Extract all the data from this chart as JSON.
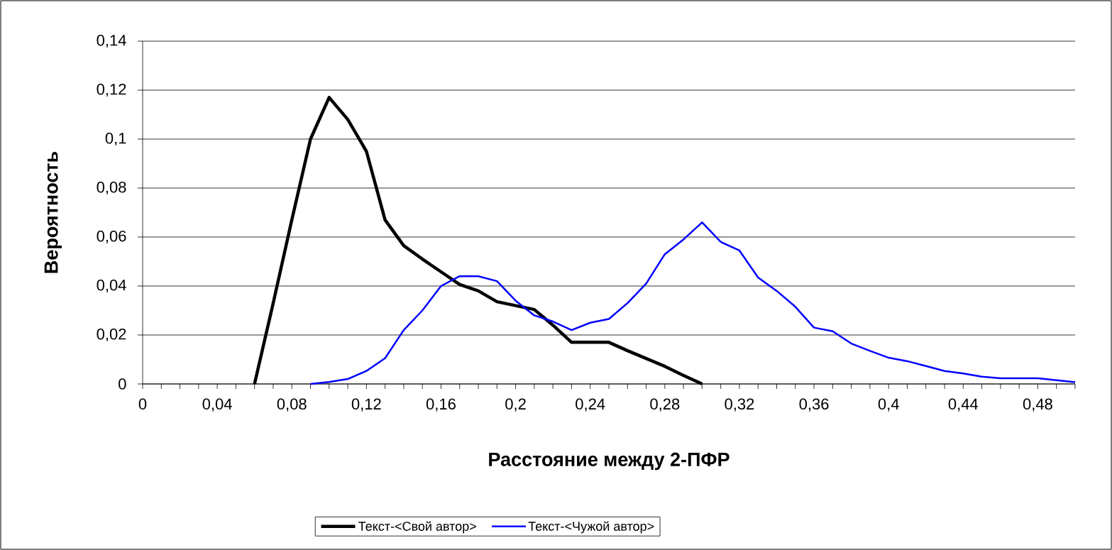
{
  "chart_data": {
    "type": "line",
    "xlabel": "Расстояние между 2-ПФР",
    "ylabel": "Вероятность",
    "xlim": [
      0,
      0.5
    ],
    "ylim": [
      0,
      0.14
    ],
    "xticks": [
      {
        "value": 0,
        "label": "0"
      },
      {
        "value": 0.01,
        "label": null
      },
      {
        "value": 0.02,
        "label": null
      },
      {
        "value": 0.03,
        "label": null
      },
      {
        "value": 0.04,
        "label": "0,04"
      },
      {
        "value": 0.05,
        "label": null
      },
      {
        "value": 0.06,
        "label": null
      },
      {
        "value": 0.07,
        "label": null
      },
      {
        "value": 0.08,
        "label": "0,08"
      },
      {
        "value": 0.09,
        "label": null
      },
      {
        "value": 0.1,
        "label": null
      },
      {
        "value": 0.11,
        "label": null
      },
      {
        "value": 0.12,
        "label": "0,12"
      },
      {
        "value": 0.13,
        "label": null
      },
      {
        "value": 0.14,
        "label": null
      },
      {
        "value": 0.15,
        "label": null
      },
      {
        "value": 0.16,
        "label": "0,16"
      },
      {
        "value": 0.17,
        "label": null
      },
      {
        "value": 0.18,
        "label": null
      },
      {
        "value": 0.19,
        "label": null
      },
      {
        "value": 0.2,
        "label": "0,2"
      },
      {
        "value": 0.21,
        "label": null
      },
      {
        "value": 0.22,
        "label": null
      },
      {
        "value": 0.23,
        "label": null
      },
      {
        "value": 0.24,
        "label": "0,24"
      },
      {
        "value": 0.25,
        "label": null
      },
      {
        "value": 0.26,
        "label": null
      },
      {
        "value": 0.27,
        "label": null
      },
      {
        "value": 0.28,
        "label": "0,28"
      },
      {
        "value": 0.29,
        "label": null
      },
      {
        "value": 0.3,
        "label": null
      },
      {
        "value": 0.31,
        "label": null
      },
      {
        "value": 0.32,
        "label": "0,32"
      },
      {
        "value": 0.33,
        "label": null
      },
      {
        "value": 0.34,
        "label": null
      },
      {
        "value": 0.35,
        "label": null
      },
      {
        "value": 0.36,
        "label": "0,36"
      },
      {
        "value": 0.37,
        "label": null
      },
      {
        "value": 0.38,
        "label": null
      },
      {
        "value": 0.39,
        "label": null
      },
      {
        "value": 0.4,
        "label": "0,4"
      },
      {
        "value": 0.41,
        "label": null
      },
      {
        "value": 0.42,
        "label": null
      },
      {
        "value": 0.43,
        "label": null
      },
      {
        "value": 0.44,
        "label": "0,44"
      },
      {
        "value": 0.45,
        "label": null
      },
      {
        "value": 0.46,
        "label": null
      },
      {
        "value": 0.47,
        "label": null
      },
      {
        "value": 0.48,
        "label": "0,48"
      },
      {
        "value": 0.49,
        "label": null
      },
      {
        "value": 0.5,
        "label": null
      }
    ],
    "yticks": [
      {
        "value": 0,
        "label": "0"
      },
      {
        "value": 0.02,
        "label": "0,02"
      },
      {
        "value": 0.04,
        "label": "0,04"
      },
      {
        "value": 0.06,
        "label": "0,06"
      },
      {
        "value": 0.08,
        "label": "0,08"
      },
      {
        "value": 0.1,
        "label": "0,1"
      },
      {
        "value": 0.12,
        "label": "0,12"
      },
      {
        "value": 0.14,
        "label": "0,14"
      }
    ],
    "grid": "y",
    "legend": "bottom",
    "marker": "none",
    "line_style": "solid",
    "series": [
      {
        "name": "Текст-<Свой автор>",
        "color": "#000000",
        "x": [
          0.06,
          0.07,
          0.08,
          0.09,
          0.1,
          0.11,
          0.12,
          0.13,
          0.14,
          0.15,
          0.16,
          0.17,
          0.18,
          0.19,
          0.2,
          0.21,
          0.22,
          0.23,
          0.24,
          0.25,
          0.26,
          0.27,
          0.28,
          0.29,
          0.3
        ],
        "values": [
          0,
          0.033,
          0.067,
          0.1,
          0.117,
          0.108,
          0.095,
          0.067,
          0.0565,
          0.051,
          0.0458,
          0.0406,
          0.038,
          0.0336,
          0.032,
          0.0304,
          0.024,
          0.017,
          0.017,
          0.017,
          0.0136,
          0.0104,
          0.0072,
          0.0035,
          0
        ]
      },
      {
        "name": "Текст-<Чужой автор>",
        "color": "#0000ff",
        "x": [
          0.09,
          0.1,
          0.11,
          0.12,
          0.13,
          0.14,
          0.15,
          0.16,
          0.17,
          0.18,
          0.19,
          0.2,
          0.21,
          0.22,
          0.23,
          0.24,
          0.25,
          0.26,
          0.27,
          0.28,
          0.29,
          0.3,
          0.31,
          0.32,
          0.33,
          0.34,
          0.35,
          0.36,
          0.37,
          0.38,
          0.39,
          0.4,
          0.41,
          0.42,
          0.43,
          0.44,
          0.45,
          0.46,
          0.47,
          0.48,
          0.49,
          0.5
        ],
        "values": [
          0,
          0.0008,
          0.002,
          0.0053,
          0.0105,
          0.022,
          0.03,
          0.04,
          0.044,
          0.044,
          0.042,
          0.034,
          0.028,
          0.0255,
          0.022,
          0.025,
          0.0265,
          0.033,
          0.041,
          0.053,
          0.059,
          0.066,
          0.058,
          0.0545,
          0.0435,
          0.038,
          0.0315,
          0.023,
          0.0215,
          0.0165,
          0.0135,
          0.0107,
          0.0093,
          0.0073,
          0.0053,
          0.0043,
          0.003,
          0.0023,
          0.0023,
          0.0023,
          0.0015,
          0.0007
        ]
      }
    ]
  }
}
